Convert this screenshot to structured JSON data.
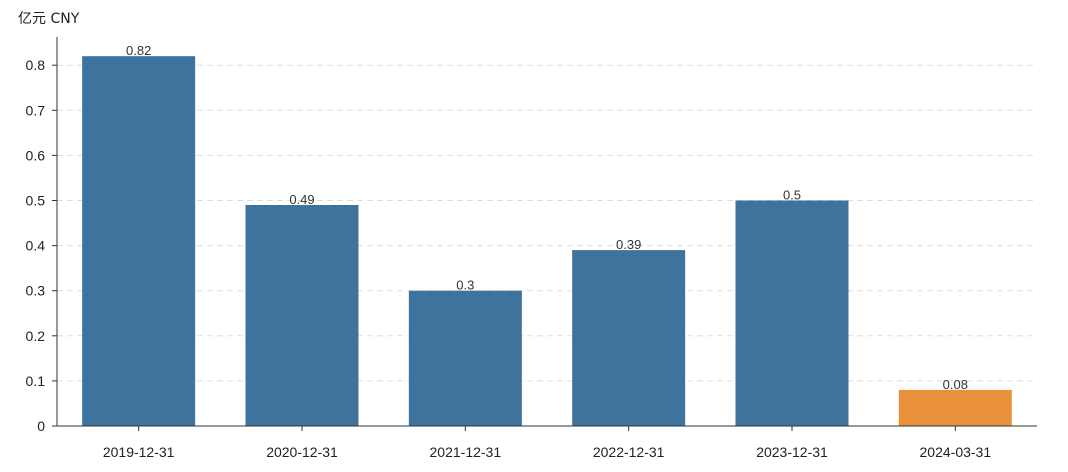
{
  "chart_data": {
    "type": "bar",
    "unit_label": "亿元  CNY",
    "categories": [
      "2019-12-31",
      "2020-12-31",
      "2021-12-31",
      "2022-12-31",
      "2023-12-31",
      "2024-03-31"
    ],
    "values": [
      0.82,
      0.49,
      0.3,
      0.39,
      0.5,
      0.08
    ],
    "value_labels": [
      "0.82",
      "0.49",
      "0.3",
      "0.39",
      "0.5",
      "0.08"
    ],
    "ylim": [
      0,
      0.85
    ],
    "yticks": [
      0,
      0.1,
      0.2,
      0.3,
      0.4,
      0.5,
      0.6,
      0.7,
      0.8
    ],
    "ytick_labels": [
      "0",
      "0.1",
      "0.2",
      "0.3",
      "0.4",
      "0.5",
      "0.6",
      "0.7",
      "0.8"
    ],
    "grid": "horizontal-dashed",
    "colors": {
      "default_bar": "#3d739c",
      "highlight_bar": "#e8903a",
      "grid": "#dddddd",
      "axis": "#333333"
    },
    "bar_colors": [
      "default_bar",
      "default_bar",
      "default_bar",
      "default_bar",
      "default_bar",
      "highlight_bar"
    ]
  }
}
